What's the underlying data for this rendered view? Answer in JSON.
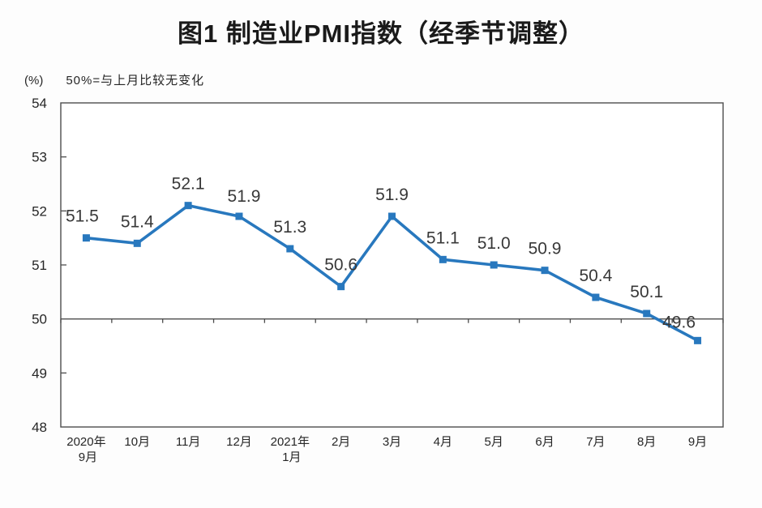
{
  "chart_data": {
    "type": "line",
    "title": "图1 制造业PMI指数（经季节调整）",
    "unit_label": "(%)",
    "note": "50%=与上月比较无变化",
    "categories": [
      "2020年\n9月",
      "10月",
      "11月",
      "12月",
      "2021年\n1月",
      "2月",
      "3月",
      "4月",
      "5月",
      "6月",
      "7月",
      "8月",
      "9月"
    ],
    "values": [
      51.5,
      51.4,
      52.1,
      51.9,
      51.3,
      50.6,
      51.9,
      51.1,
      51.0,
      50.9,
      50.4,
      50.1,
      49.6
    ],
    "labels": [
      "51.5",
      "51.4",
      "52.1",
      "51.9",
      "51.3",
      "50.6",
      "51.9",
      "51.1",
      "51.0",
      "50.9",
      "50.4",
      "50.1",
      "49.6"
    ],
    "ylim": [
      48,
      54
    ],
    "yticks": [
      48,
      49,
      50,
      51,
      52,
      53,
      54
    ],
    "reference_line": 50,
    "grid": false,
    "legend_position": "none",
    "line_color": "#2878be",
    "marker_color": "#2878be",
    "axis_color": "#4d4d4d",
    "label_color": "#383838",
    "default_label_offset": [
      0,
      -20
    ],
    "label_offsets": {
      "0": [
        -5,
        -20
      ],
      "3": [
        6,
        -18
      ],
      "12": [
        -23,
        -16
      ]
    }
  }
}
